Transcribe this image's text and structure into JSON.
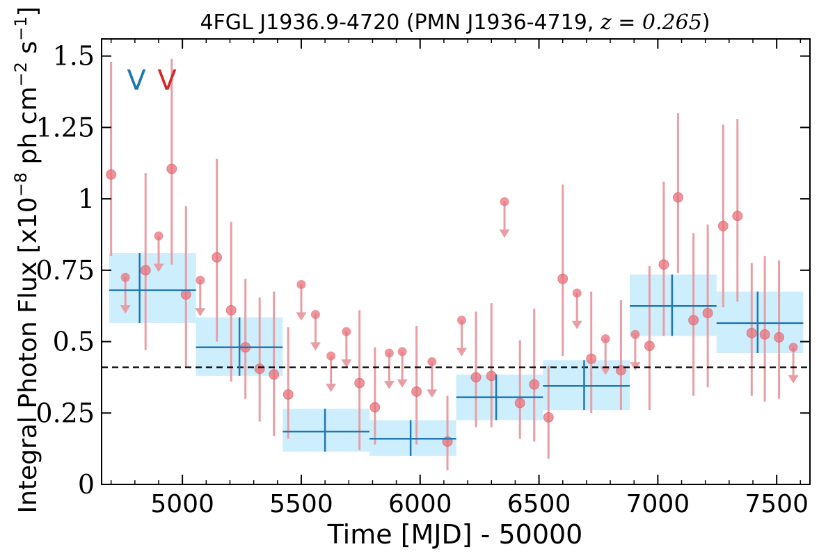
{
  "chart_data": {
    "type": "scatter",
    "title_prefix": "4FGL J1936.9-4720 (PMN J1936-4719, ",
    "title_math": "z = 0.265",
    "title_suffix": ")",
    "xlabel": "Time [MJD] - 50000",
    "ylabel_main": "Integral Photon Flux [x10",
    "ylabel_exp1": "−8",
    "ylabel_mid": " ph cm",
    "ylabel_exp2": "−2",
    "ylabel_mid2": " s",
    "ylabel_exp3": "−1",
    "ylabel_end": "]",
    "xlim": [
      4660,
      7640
    ],
    "ylim": [
      0,
      1.56
    ],
    "x_ticks": [
      5000,
      5500,
      6000,
      6500,
      7000,
      7500
    ],
    "x_tick_labels": [
      "5000",
      "5500",
      "6000",
      "6500",
      "7000",
      "7500"
    ],
    "y_ticks": [
      0,
      0.25,
      0.5,
      0.75,
      1,
      1.25,
      1.5
    ],
    "y_tick_labels": [
      "0",
      "0.25",
      "0.5",
      "0.75",
      "1",
      "1.25",
      "1.5"
    ],
    "mean_line": 0.41,
    "markers": [
      {
        "label": "V",
        "color": "#1f77b4"
      },
      {
        "label": "V",
        "color": "#d62728"
      }
    ],
    "colors": {
      "binned": "#1f77b4",
      "binned_fill": "#cdeefc",
      "points": "#e8707a",
      "errors": "#e89ea4"
    },
    "binned": [
      {
        "x0": 4692,
        "x1": 5057,
        "y": 0.68,
        "ylo": 0.565,
        "yhi": 0.81
      },
      {
        "x0": 5057,
        "x1": 5422,
        "y": 0.48,
        "ylo": 0.38,
        "yhi": 0.585
      },
      {
        "x0": 5422,
        "x1": 5787,
        "y": 0.185,
        "ylo": 0.115,
        "yhi": 0.265
      },
      {
        "x0": 5787,
        "x1": 6152,
        "y": 0.16,
        "ylo": 0.1,
        "yhi": 0.225
      },
      {
        "x0": 6152,
        "x1": 6517,
        "y": 0.305,
        "ylo": 0.225,
        "yhi": 0.385
      },
      {
        "x0": 6517,
        "x1": 6882,
        "y": 0.345,
        "ylo": 0.26,
        "yhi": 0.435
      },
      {
        "x0": 6882,
        "x1": 7247,
        "y": 0.625,
        "ylo": 0.52,
        "yhi": 0.735
      },
      {
        "x0": 7247,
        "x1": 7612,
        "y": 0.565,
        "ylo": 0.46,
        "yhi": 0.675
      }
    ],
    "binned_center_x": [
      4820,
      5240,
      5600,
      5960,
      6320,
      6690,
      7060,
      7420
    ],
    "points": [
      {
        "x": 4700,
        "y": 1.085,
        "ylo": 0.8,
        "yhi": 1.48
      },
      {
        "x": 4845,
        "y": 0.75,
        "ylo": 0.47,
        "yhi": 1.09
      },
      {
        "x": 4955,
        "y": 1.105,
        "ylo": 0.77,
        "yhi": 1.49
      },
      {
        "x": 5015,
        "y": 0.665,
        "ylo": 0.41,
        "yhi": 0.975
      },
      {
        "x": 5145,
        "y": 0.795,
        "ylo": 0.5,
        "yhi": 1.14
      },
      {
        "x": 5205,
        "y": 0.61,
        "ylo": 0.36,
        "yhi": 0.92
      },
      {
        "x": 5265,
        "y": 0.48,
        "ylo": 0.3,
        "yhi": 0.72
      },
      {
        "x": 5325,
        "y": 0.405,
        "ylo": 0.22,
        "yhi": 0.655
      },
      {
        "x": 5385,
        "y": 0.385,
        "ylo": 0.17,
        "yhi": 0.675
      },
      {
        "x": 5445,
        "y": 0.315,
        "ylo": 0.16,
        "yhi": 0.55
      },
      {
        "x": 5745,
        "y": 0.355,
        "ylo": 0.12,
        "yhi": 0.61
      },
      {
        "x": 5810,
        "y": 0.27,
        "ylo": 0.14,
        "yhi": 0.48
      },
      {
        "x": 5985,
        "y": 0.325,
        "ylo": 0.14,
        "yhi": 0.555
      },
      {
        "x": 6115,
        "y": 0.15,
        "ylo": 0.05,
        "yhi": 0.31
      },
      {
        "x": 6235,
        "y": 0.375,
        "ylo": 0.2,
        "yhi": 0.605
      },
      {
        "x": 6300,
        "y": 0.38,
        "ylo": 0.2,
        "yhi": 0.635
      },
      {
        "x": 6420,
        "y": 0.285,
        "ylo": 0.16,
        "yhi": 0.505
      },
      {
        "x": 6480,
        "y": 0.35,
        "ylo": 0.15,
        "yhi": 0.615
      },
      {
        "x": 6540,
        "y": 0.235,
        "ylo": 0.09,
        "yhi": 0.415
      },
      {
        "x": 6600,
        "y": 0.72,
        "ylo": 0.45,
        "yhi": 1.05
      },
      {
        "x": 6720,
        "y": 0.44,
        "ylo": 0.25,
        "yhi": 0.675
      },
      {
        "x": 6845,
        "y": 0.4,
        "ylo": 0.26,
        "yhi": 0.645
      },
      {
        "x": 6965,
        "y": 0.485,
        "ylo": 0.26,
        "yhi": 0.765
      },
      {
        "x": 7025,
        "y": 0.77,
        "ylo": 0.52,
        "yhi": 1.06
      },
      {
        "x": 7085,
        "y": 1.005,
        "ylo": 0.74,
        "yhi": 1.3
      },
      {
        "x": 7150,
        "y": 0.575,
        "ylo": 0.31,
        "yhi": 0.88
      },
      {
        "x": 7210,
        "y": 0.6,
        "ylo": 0.34,
        "yhi": 0.91
      },
      {
        "x": 7275,
        "y": 0.905,
        "ylo": 0.62,
        "yhi": 1.26
      },
      {
        "x": 7335,
        "y": 0.94,
        "ylo": 0.64,
        "yhi": 1.28
      },
      {
        "x": 7395,
        "y": 0.53,
        "ylo": 0.31,
        "yhi": 0.775
      },
      {
        "x": 7450,
        "y": 0.525,
        "ylo": 0.29,
        "yhi": 0.8
      },
      {
        "x": 7510,
        "y": 0.515,
        "ylo": 0.3,
        "yhi": 0.785
      }
    ],
    "upper_limits": [
      {
        "x": 4760,
        "y": 0.725
      },
      {
        "x": 4900,
        "y": 0.87
      },
      {
        "x": 5075,
        "y": 0.715
      },
      {
        "x": 5500,
        "y": 0.7
      },
      {
        "x": 5560,
        "y": 0.595
      },
      {
        "x": 5625,
        "y": 0.45
      },
      {
        "x": 5690,
        "y": 0.535
      },
      {
        "x": 5870,
        "y": 0.46
      },
      {
        "x": 5925,
        "y": 0.465
      },
      {
        "x": 6050,
        "y": 0.43
      },
      {
        "x": 6175,
        "y": 0.575
      },
      {
        "x": 6355,
        "y": 0.99
      },
      {
        "x": 6660,
        "y": 0.67
      },
      {
        "x": 6780,
        "y": 0.51
      },
      {
        "x": 6905,
        "y": 0.525
      },
      {
        "x": 7570,
        "y": 0.48
      }
    ]
  }
}
